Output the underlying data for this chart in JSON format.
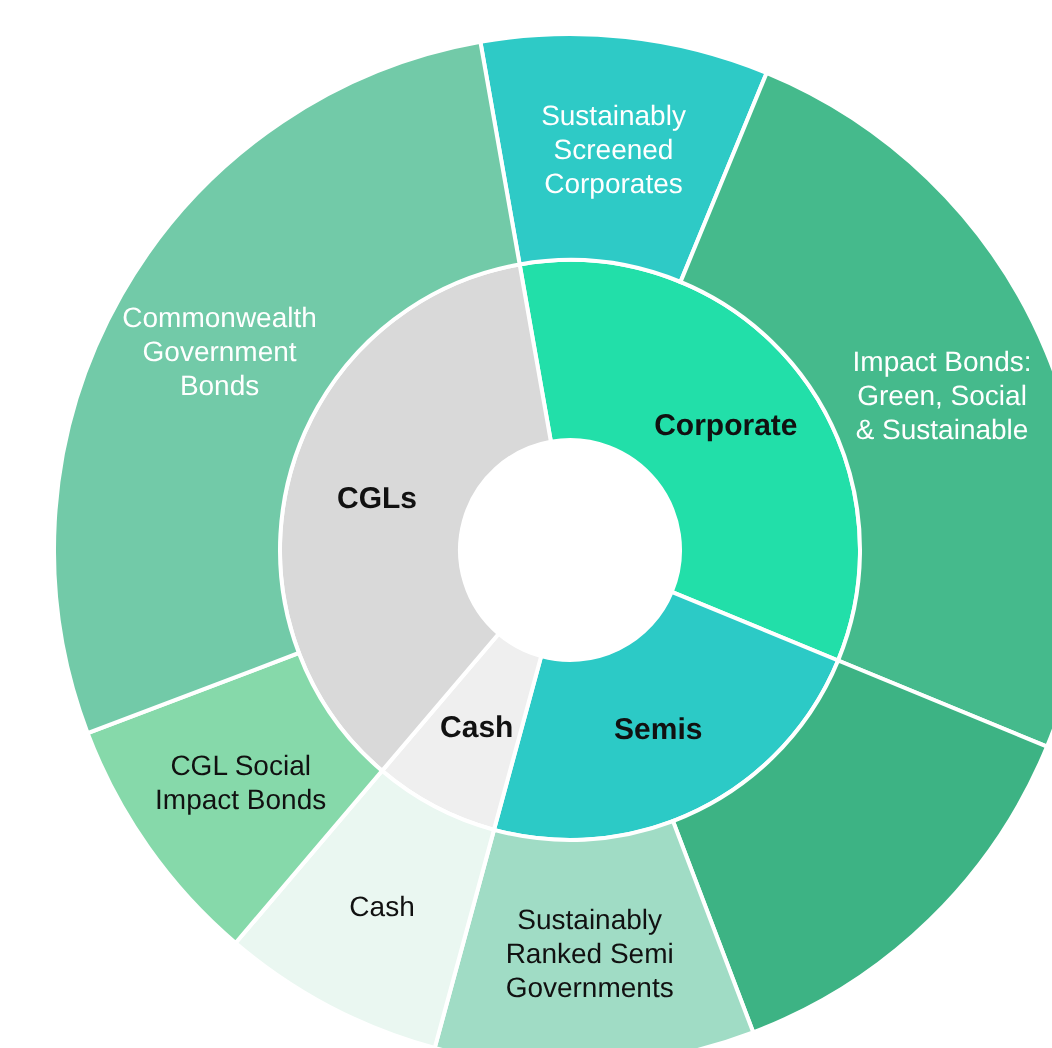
{
  "chart_data": [
    {
      "type": "donut",
      "categories": [
        "Corporate",
        "Semis",
        "Cash",
        "CGLs"
      ],
      "values": [
        34,
        23,
        7,
        36
      ],
      "colors": [
        "#22dfa9",
        "#2ccac6",
        "#efefef",
        "#d9d9d9"
      ]
    },
    {
      "type": "donut",
      "categories": [
        "Sustainably Screened Corporates",
        "Impact Bonds: Green, Social & Sustainable",
        null,
        "Sustainably Ranked Semi Governments",
        "Cash",
        "CGL Social Impact Bonds",
        "Commonwealth Government Bonds"
      ],
      "values": [
        9,
        25,
        13,
        10,
        7,
        8,
        28
      ],
      "colors": [
        "#2ecac6",
        "#45ba8c",
        "#3db384",
        "#a0dcc5",
        "#eaf7f1",
        "#86d9aa",
        "#72caa8"
      ]
    }
  ]
}
